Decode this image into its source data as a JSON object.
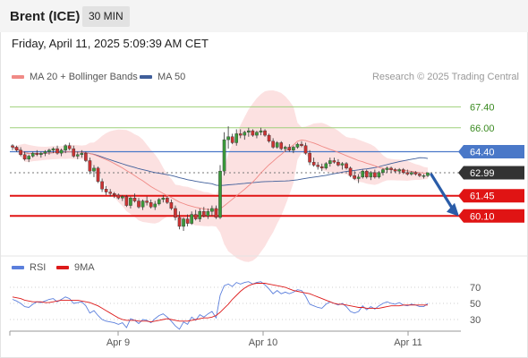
{
  "header": {
    "title": "Brent (ICE)",
    "interval": "30 MIN"
  },
  "datetime": "Friday, April 11, 2025 5:09:39 AM CET",
  "legend": {
    "main": [
      {
        "label": "MA 20 + Bollinger Bands",
        "color": "#f08a86"
      },
      {
        "label": "MA 50",
        "color": "#3f5e9a"
      }
    ],
    "rsi": [
      {
        "label": "RSI",
        "color": "#5b7fdc"
      },
      {
        "label": "9MA",
        "color": "#dd1a1a"
      }
    ]
  },
  "copyright": "Research © 2025 Trading Central",
  "colors": {
    "up": "#3a9a3a",
    "down": "#cc3333",
    "bollinger_fill": "#fcdcdc",
    "ma20": "#f08a86",
    "ma50": "#3f5e9a",
    "target_line": "#e01414",
    "resistance_line": "#9ed07a",
    "pivot_line": "#4a78c8",
    "arrow": "#2a5ca8"
  },
  "chart_data": [
    {
      "type": "candlestick",
      "x_ticks": [
        "Apr 9",
        "Apr 10",
        "Apr 11"
      ],
      "ylim": [
        57.6,
        68.8
      ],
      "levels": [
        {
          "value": 67.4,
          "label": "67.40",
          "kind": "resistance"
        },
        {
          "value": 66.0,
          "label": "66.00",
          "kind": "resistance"
        },
        {
          "value": 64.4,
          "label": "64.40",
          "kind": "pivot"
        },
        {
          "value": 62.99,
          "label": "62.99",
          "kind": "last"
        },
        {
          "value": 61.45,
          "label": "61.45",
          "kind": "target"
        },
        {
          "value": 60.1,
          "label": "60.10",
          "kind": "target"
        }
      ],
      "candles": [
        [
          64.8,
          64.9,
          64.5,
          64.7
        ],
        [
          64.7,
          64.8,
          64.4,
          64.5
        ],
        [
          64.5,
          64.7,
          64.1,
          64.2
        ],
        [
          64.2,
          64.4,
          63.8,
          63.9
        ],
        [
          63.9,
          64.2,
          63.7,
          64.1
        ],
        [
          64.1,
          64.4,
          64.0,
          64.3
        ],
        [
          64.3,
          64.5,
          64.1,
          64.2
        ],
        [
          64.2,
          64.4,
          64.0,
          64.3
        ],
        [
          64.3,
          64.5,
          64.1,
          64.4
        ],
        [
          64.4,
          64.6,
          64.2,
          64.5
        ],
        [
          64.5,
          64.7,
          64.3,
          64.6
        ],
        [
          64.6,
          64.8,
          64.2,
          64.3
        ],
        [
          64.3,
          64.6,
          64.1,
          64.5
        ],
        [
          64.5,
          64.9,
          64.3,
          64.8
        ],
        [
          64.8,
          65.0,
          64.5,
          64.6
        ],
        [
          64.6,
          64.8,
          64.0,
          64.1
        ],
        [
          64.1,
          64.4,
          63.9,
          64.2
        ],
        [
          64.2,
          64.5,
          64.0,
          64.3
        ],
        [
          64.3,
          64.4,
          63.7,
          63.8
        ],
        [
          63.8,
          64.0,
          62.9,
          63.1
        ],
        [
          63.1,
          63.5,
          62.7,
          63.3
        ],
        [
          63.3,
          63.4,
          62.3,
          62.4
        ],
        [
          62.4,
          62.6,
          61.7,
          61.9
        ],
        [
          61.9,
          62.1,
          61.5,
          61.7
        ],
        [
          61.7,
          61.9,
          61.4,
          61.6
        ],
        [
          61.6,
          61.7,
          61.3,
          61.5
        ],
        [
          61.5,
          61.6,
          61.2,
          61.3
        ],
        [
          61.3,
          61.5,
          61.1,
          61.4
        ],
        [
          61.4,
          61.5,
          60.7,
          60.8
        ],
        [
          60.8,
          61.4,
          60.6,
          61.3
        ],
        [
          61.3,
          61.6,
          61.0,
          61.1
        ],
        [
          61.1,
          61.3,
          60.6,
          60.7
        ],
        [
          60.7,
          61.2,
          60.5,
          61.1
        ],
        [
          61.1,
          61.4,
          60.8,
          61.0
        ],
        [
          61.0,
          61.2,
          60.6,
          60.7
        ],
        [
          60.7,
          61.1,
          60.5,
          60.9
        ],
        [
          60.9,
          61.3,
          60.8,
          61.2
        ],
        [
          61.2,
          61.5,
          61.0,
          61.3
        ],
        [
          61.3,
          61.4,
          60.9,
          61.0
        ],
        [
          61.0,
          61.2,
          60.5,
          60.6
        ],
        [
          60.6,
          60.8,
          59.8,
          60.0
        ],
        [
          60.0,
          60.4,
          59.2,
          59.4
        ],
        [
          59.4,
          60.0,
          59.1,
          59.9
        ],
        [
          59.9,
          60.2,
          59.4,
          59.6
        ],
        [
          59.6,
          60.4,
          59.5,
          60.2
        ],
        [
          60.2,
          60.5,
          59.8,
          59.9
        ],
        [
          59.9,
          60.6,
          59.7,
          60.4
        ],
        [
          60.4,
          60.7,
          60.0,
          60.1
        ],
        [
          60.1,
          60.6,
          59.9,
          60.4
        ],
        [
          60.4,
          60.8,
          60.1,
          60.6
        ],
        [
          60.6,
          60.8,
          59.9,
          60.0
        ],
        [
          60.0,
          63.5,
          59.9,
          63.1
        ],
        [
          63.1,
          65.7,
          62.8,
          65.2
        ],
        [
          65.2,
          66.1,
          64.6,
          65.4
        ],
        [
          65.4,
          65.6,
          64.9,
          65.0
        ],
        [
          65.0,
          65.9,
          64.8,
          65.6
        ],
        [
          65.6,
          65.9,
          65.3,
          65.5
        ],
        [
          65.5,
          65.8,
          65.2,
          65.7
        ],
        [
          65.7,
          66.0,
          65.4,
          65.8
        ],
        [
          65.8,
          65.9,
          65.4,
          65.5
        ],
        [
          65.5,
          65.8,
          65.3,
          65.7
        ],
        [
          65.7,
          66.0,
          65.5,
          65.8
        ],
        [
          65.8,
          65.9,
          65.4,
          65.5
        ],
        [
          65.5,
          65.6,
          65.0,
          65.1
        ],
        [
          65.1,
          65.3,
          64.6,
          64.7
        ],
        [
          64.7,
          65.1,
          64.6,
          65.0
        ],
        [
          65.0,
          65.1,
          64.5,
          64.6
        ],
        [
          64.6,
          64.8,
          64.4,
          64.7
        ],
        [
          64.7,
          64.9,
          64.4,
          64.5
        ],
        [
          64.5,
          64.8,
          64.3,
          64.7
        ],
        [
          64.7,
          65.0,
          64.6,
          64.9
        ],
        [
          64.9,
          65.1,
          64.7,
          64.8
        ],
        [
          64.8,
          65.0,
          64.2,
          64.3
        ],
        [
          64.3,
          64.5,
          63.5,
          63.7
        ],
        [
          63.7,
          64.0,
          63.4,
          63.5
        ],
        [
          63.5,
          63.7,
          63.2,
          63.4
        ],
        [
          63.4,
          63.6,
          63.1,
          63.3
        ],
        [
          63.3,
          63.7,
          63.2,
          63.6
        ],
        [
          63.6,
          64.0,
          63.4,
          63.8
        ],
        [
          63.8,
          64.0,
          63.6,
          63.7
        ],
        [
          63.7,
          63.9,
          63.4,
          63.5
        ],
        [
          63.5,
          63.7,
          63.2,
          63.6
        ],
        [
          63.6,
          63.7,
          63.2,
          63.3
        ],
        [
          63.3,
          63.4,
          62.7,
          62.8
        ],
        [
          62.8,
          63.1,
          62.5,
          62.6
        ],
        [
          62.6,
          62.9,
          62.3,
          62.7
        ],
        [
          62.7,
          63.2,
          62.6,
          63.1
        ],
        [
          63.1,
          63.2,
          62.6,
          62.7
        ],
        [
          62.7,
          63.1,
          62.5,
          63.0
        ],
        [
          63.0,
          63.2,
          62.6,
          62.7
        ],
        [
          62.7,
          63.1,
          62.6,
          63.0
        ],
        [
          63.0,
          63.3,
          62.8,
          63.2
        ],
        [
          63.2,
          63.4,
          63.0,
          63.3
        ],
        [
          63.3,
          63.4,
          63.0,
          63.2
        ],
        [
          63.2,
          63.3,
          63.0,
          63.1
        ],
        [
          63.1,
          63.3,
          62.9,
          63.2
        ],
        [
          63.2,
          63.3,
          62.9,
          63.0
        ],
        [
          63.0,
          63.2,
          62.8,
          62.9
        ],
        [
          62.9,
          63.1,
          62.8,
          63.0
        ],
        [
          63.0,
          63.1,
          62.8,
          62.9
        ],
        [
          62.9,
          63.0,
          62.7,
          62.8
        ],
        [
          62.8,
          62.9,
          62.6,
          62.8
        ],
        [
          62.8,
          63.0,
          62.7,
          62.99
        ]
      ]
    },
    {
      "type": "line",
      "ylim": [
        20,
        80
      ],
      "y_ticks": [
        70,
        50,
        30
      ],
      "series": [
        {
          "name": "RSI",
          "values": [
            55,
            53,
            50,
            46,
            45,
            49,
            52,
            51,
            53,
            55,
            56,
            52,
            55,
            58,
            56,
            50,
            51,
            52,
            47,
            38,
            41,
            35,
            30,
            28,
            27,
            26,
            24,
            26,
            20,
            31,
            29,
            25,
            30,
            29,
            26,
            31,
            35,
            37,
            33,
            28,
            22,
            18,
            27,
            24,
            33,
            29,
            36,
            33,
            37,
            40,
            32,
            60,
            72,
            74,
            71,
            76,
            74,
            76,
            77,
            74,
            76,
            77,
            73,
            68,
            62,
            66,
            62,
            64,
            62,
            64,
            67,
            66,
            59,
            49,
            47,
            45,
            44,
            49,
            52,
            50,
            48,
            50,
            46,
            40,
            38,
            40,
            47,
            42,
            46,
            43,
            47,
            50,
            52,
            50,
            49,
            51,
            48,
            47,
            49,
            48,
            46,
            46,
            50
          ]
        },
        {
          "name": "9MA",
          "values": [
            58,
            57,
            56,
            54,
            53,
            52,
            52,
            52,
            51,
            51,
            52,
            53,
            54,
            54,
            54,
            54,
            54,
            53,
            52,
            51,
            49,
            47,
            44,
            41,
            38,
            35,
            32,
            30,
            29,
            29,
            29,
            28,
            28,
            28,
            27,
            28,
            29,
            30,
            31,
            30,
            29,
            28,
            28,
            28,
            29,
            30,
            31,
            32,
            32,
            33,
            35,
            39,
            44,
            49,
            55,
            60,
            65,
            69,
            72,
            74,
            75,
            75,
            75,
            74,
            73,
            72,
            71,
            70,
            68,
            66,
            65,
            64,
            63,
            62,
            60,
            58,
            56,
            54,
            52,
            50,
            49,
            49,
            48,
            47,
            46,
            45,
            45,
            44,
            44,
            44,
            44,
            45,
            46,
            47,
            47,
            47,
            48,
            48,
            48,
            48,
            48,
            48,
            48
          ]
        }
      ]
    }
  ]
}
